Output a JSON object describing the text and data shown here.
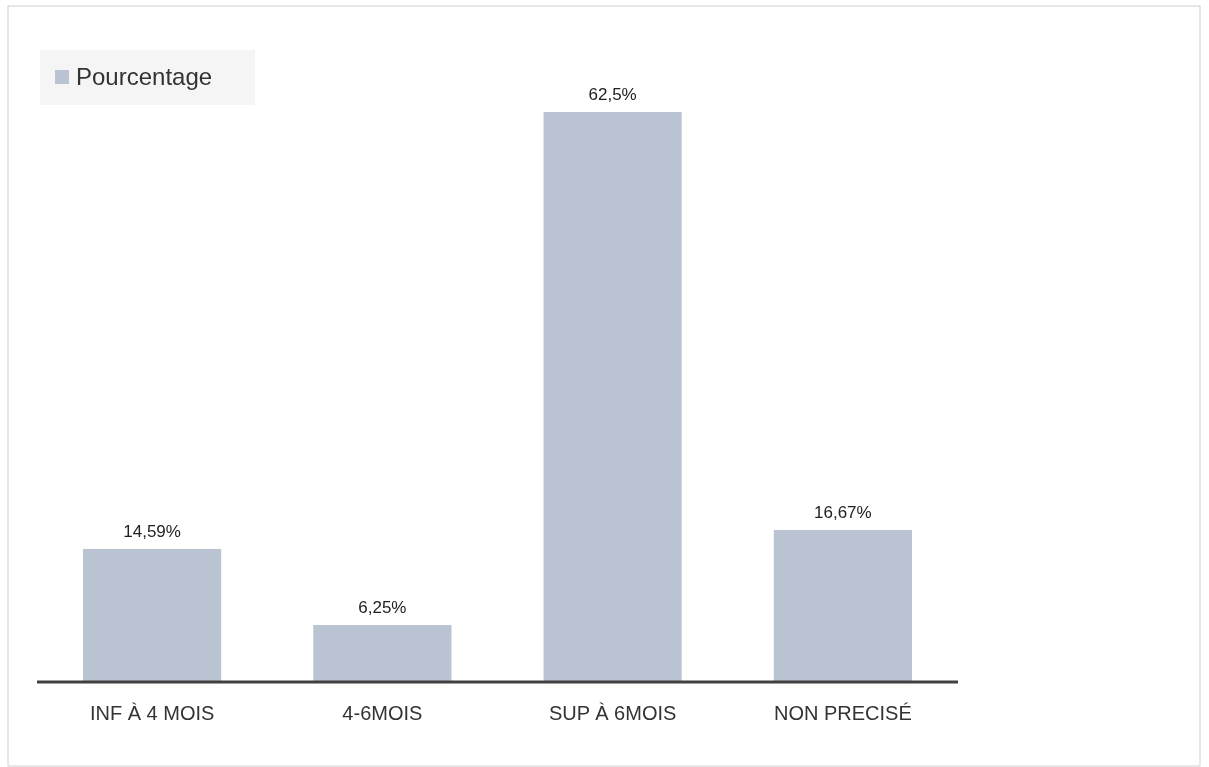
{
  "chart_data": {
    "type": "bar",
    "categories": [
      "INF À 4 MOIS",
      "4-6MOIS",
      "SUP À 6MOIS",
      "NON PRECISÉ"
    ],
    "series": [
      {
        "name": "Pourcentage",
        "color": "#b9c3d2",
        "values": [
          14.59,
          6.25,
          62.5,
          16.67
        ],
        "value_labels": [
          "14,59%",
          "6,25%",
          "62,5%",
          "16,67%"
        ]
      }
    ],
    "legend": "top left"
  }
}
